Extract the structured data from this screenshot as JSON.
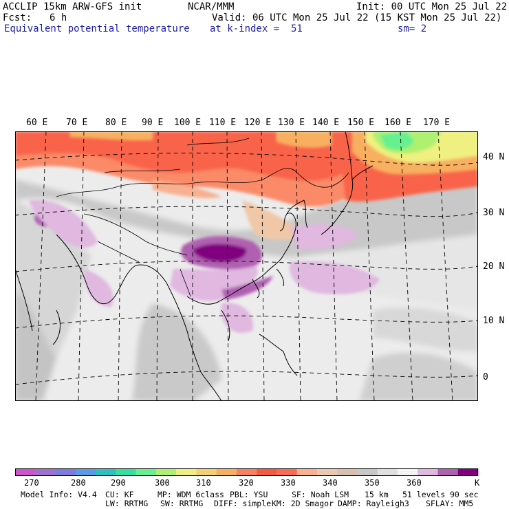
{
  "header": {
    "model": "ACCLIP 15km ARW-GFS init",
    "center": "NCAR/MMM",
    "init": "Init: 00 UTC Mon 25 Jul 22",
    "fcst_label": "Fcst:",
    "fcst_value": "6 h",
    "valid": "Valid: 06 UTC Mon 25 Jul 22 (15 KST Mon 25 Jul 22)",
    "field": "Equivalent potential temperature",
    "level": "at k-index =  51",
    "smoothing": "sm= 2"
  },
  "map": {
    "lon_labels": [
      "60 E",
      "70 E",
      "80 E",
      "90 E",
      "100 E",
      "110 E",
      "120 E",
      "130 E",
      "140 E",
      "150 E",
      "160 E",
      "170 E"
    ],
    "lat_labels": [
      "40 N",
      "30 N",
      "20 N",
      "10 N",
      "0"
    ]
  },
  "colorbar": {
    "colors": [
      "#cc55cc",
      "#a070d0",
      "#7b7be0",
      "#5a9ae6",
      "#2ec0c0",
      "#34e0a0",
      "#66f090",
      "#aef070",
      "#f0f080",
      "#f5d070",
      "#f8b060",
      "#fa8060",
      "#f85a40",
      "#fa6a55",
      "#fcb090",
      "#ecc8b0",
      "#d8c0b0",
      "#c8c8c8",
      "#e0e0e0",
      "#f4f4f4",
      "#e0b8e0",
      "#b060b0",
      "#800080"
    ],
    "ticks": [
      "270",
      "280",
      "290",
      "300",
      "310",
      "320",
      "330",
      "340",
      "350",
      "360"
    ],
    "unit": "K"
  },
  "footer": {
    "line1": [
      "Model Info: V4.4",
      "CU: KF",
      "MP: WDM 6class",
      "PBL: YSU",
      "SF: Noah LSM",
      "15 km",
      "51 levels",
      "90 sec"
    ],
    "line2": [
      "LW: RRTMG",
      "SW: RRTMG",
      "DIFF: simple",
      "KM: 2D Smagor",
      "DAMP: Rayleigh3",
      "SFLAY: MM5"
    ]
  }
}
